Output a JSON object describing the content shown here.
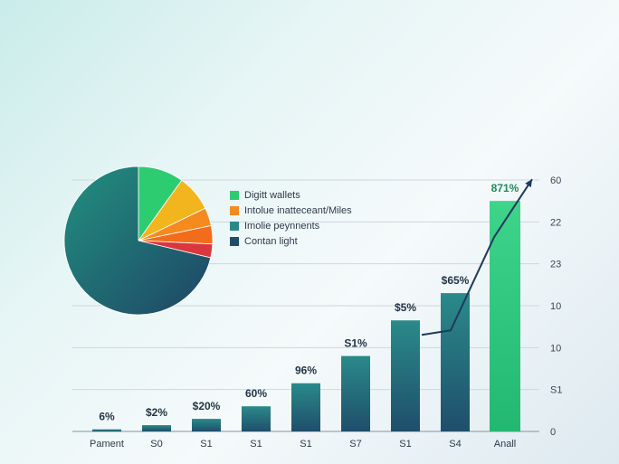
{
  "chart_data": [
    {
      "type": "pie",
      "slices": [
        {
          "value": 72,
          "color": "#1f6b7f"
        },
        {
          "value": 10,
          "color": "#2ecc71"
        },
        {
          "value": 8,
          "color": "#f2b51d"
        },
        {
          "value": 4,
          "color": "#f58a1f"
        },
        {
          "value": 4,
          "color": "#f26d1b"
        },
        {
          "value": 3,
          "color": "#d9363e"
        }
      ],
      "legend": [
        {
          "label": "Digitt wallets",
          "color": "#2ecc71"
        },
        {
          "label": "Intolue inatteceant/Miles",
          "color": "#f58a1f"
        },
        {
          "label": "Imolie peynnents",
          "color": "#2a8a8a"
        },
        {
          "label": "Contan light",
          "color": "#1f4e6b"
        }
      ]
    },
    {
      "type": "bar",
      "categories": [
        "Pament",
        "S0",
        "S1",
        "S1",
        "S1",
        "S7",
        "S1",
        "S4",
        "Anall"
      ],
      "values": [
        0.5,
        1.5,
        3,
        6,
        11.5,
        18,
        26.5,
        33,
        55
      ],
      "value_labels": [
        "6%",
        "$2%",
        "$20%",
        "60%",
        "96%",
        "S1%",
        "$5%",
        "$65%",
        "871%"
      ],
      "right_tick_labels": [
        "0",
        "S1",
        "10",
        "10",
        "23",
        "22",
        "60"
      ],
      "ylim": [
        0,
        60
      ],
      "grid": true,
      "colors": {
        "bar_top": "#2a8a8a",
        "bar_bottom": "#1f4e6b",
        "highlight_top": "#3ed48a",
        "highlight_bottom": "#22b872",
        "trend": "#1e3a5f",
        "value_label": "#243447",
        "highlight_label": "#1f8a55"
      }
    }
  ]
}
